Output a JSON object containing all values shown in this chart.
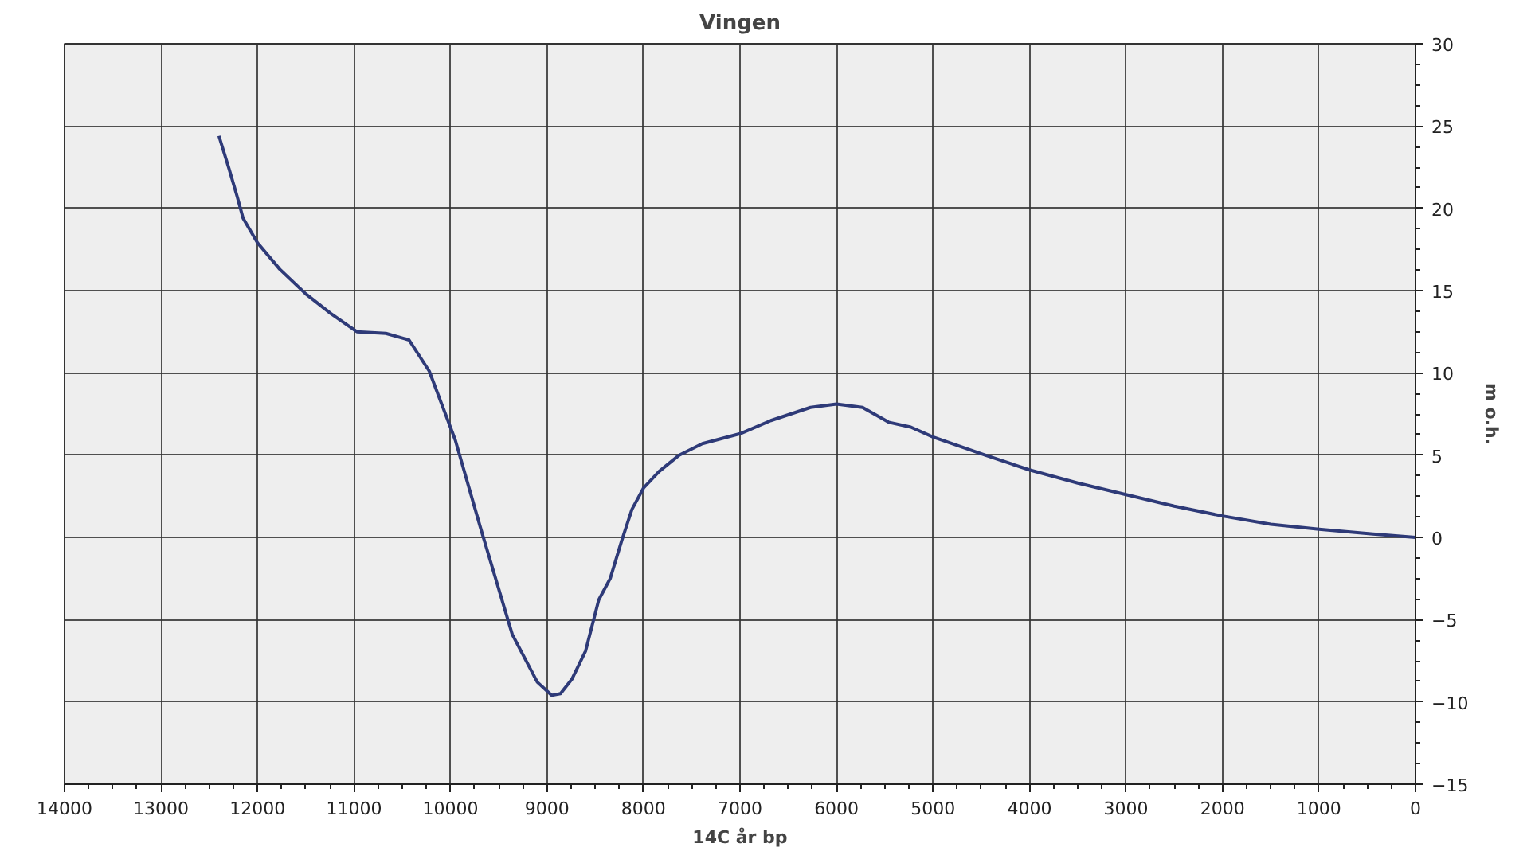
{
  "chart_data": {
    "type": "line",
    "title": "Vingen",
    "xlabel": "14C år bp",
    "ylabel": "m o.h.",
    "x": [
      12400,
      12295,
      12210,
      12150,
      12000,
      11770,
      11500,
      11240,
      10970,
      10670,
      10430,
      10220,
      9950,
      9690,
      9360,
      9100,
      8950,
      8860,
      8740,
      8600,
      8464,
      8345,
      8226,
      8120,
      8000,
      7840,
      7630,
      7390,
      7000,
      6680,
      6270,
      6000,
      5730,
      5460,
      5230,
      5000,
      4460,
      4000,
      3500,
      3000,
      2500,
      2000,
      1500,
      1000,
      440,
      0
    ],
    "series": [
      {
        "color": "#2e3a78",
        "values": [
          24.4,
          22.4,
          20.7,
          19.4,
          17.9,
          16.3,
          14.8,
          13.6,
          12.5,
          12.4,
          12.0,
          10.1,
          5.9,
          0.6,
          -5.9,
          -8.8,
          -9.6,
          -9.5,
          -8.6,
          -6.9,
          -3.8,
          -2.5,
          -0.2,
          1.7,
          3.0,
          4.0,
          5.0,
          5.7,
          6.3,
          7.1,
          7.9,
          8.1,
          7.9,
          7.0,
          6.7,
          6.1,
          5.0,
          4.1,
          3.3,
          2.6,
          1.9,
          1.3,
          0.8,
          0.5,
          0.2,
          0
        ]
      }
    ],
    "xlim": [
      14000,
      0
    ],
    "ylim": [
      -15,
      30
    ],
    "xticks": [
      14000,
      13000,
      12000,
      11000,
      10000,
      9000,
      8000,
      7000,
      6000,
      5000,
      4000,
      3000,
      2000,
      1000,
      0
    ],
    "yticks": [
      {
        "value": -15,
        "label": "−15"
      },
      {
        "value": -10,
        "label": "−10"
      },
      {
        "value": -5,
        "label": "−5"
      },
      0,
      5,
      10,
      15,
      20,
      25,
      30
    ],
    "grid": true,
    "marker": "none",
    "line_style": "solid"
  }
}
